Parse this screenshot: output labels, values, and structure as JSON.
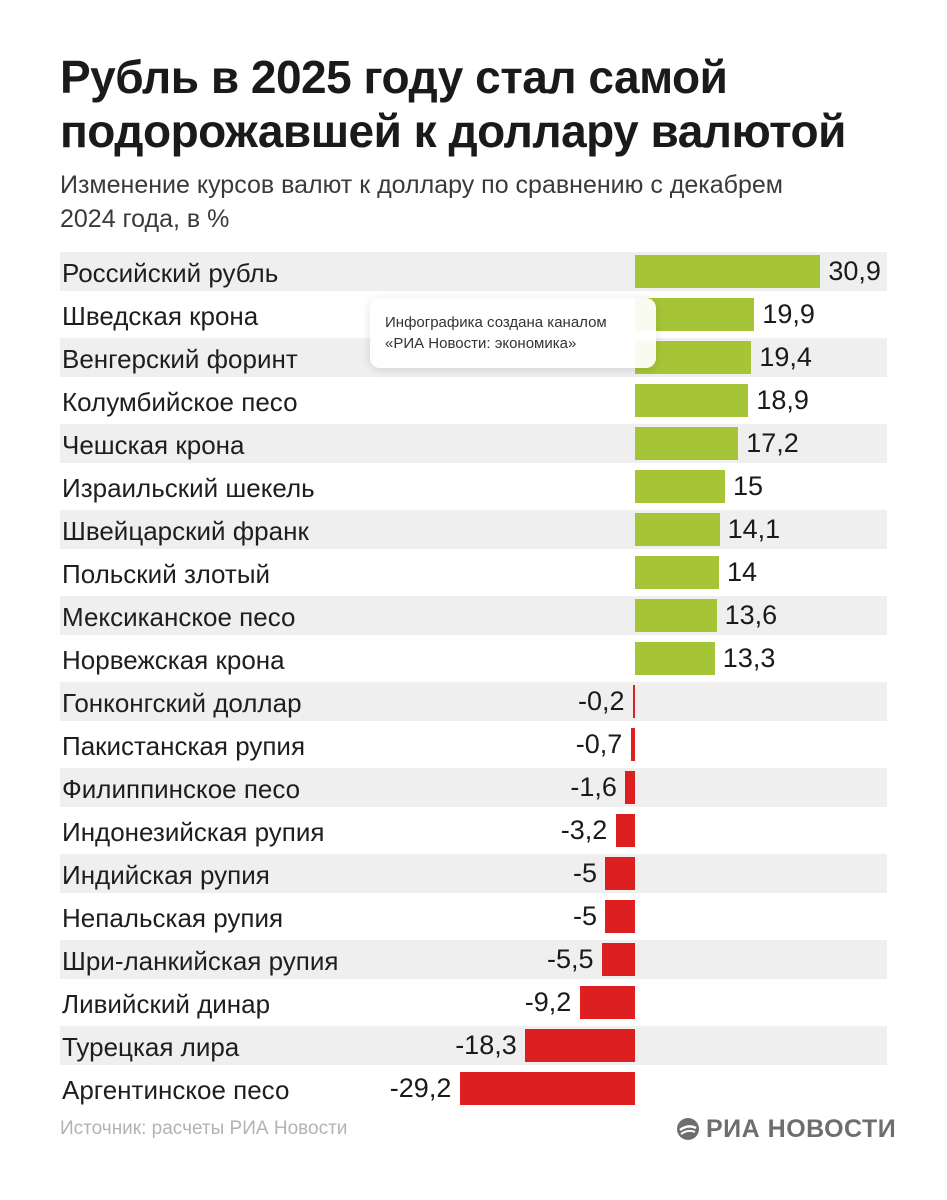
{
  "header": {
    "title": "Рубль в 2025 году стал самой подорожавшей к доллару валютой",
    "subtitle": "Изменение курсов валют к доллару по сравнению с декабрем 2024 года, в %"
  },
  "tooltip": {
    "text": "Инфографика создана каналом «РИА Новости: экономика»"
  },
  "footer": {
    "source": "Источник: расчеты РИА Новости",
    "logo_text": "РИА НОВОСТИ",
    "logo_icon": "ria-logo-icon"
  },
  "colors": {
    "positive": "#a6c536",
    "negative": "#dd1f1f",
    "row_shade": "#efefef"
  },
  "chart_data": {
    "type": "bar",
    "orientation": "horizontal",
    "categories": [
      "Российский рубль",
      "Шведская крона",
      "Венгерский форинт",
      "Колумбийское песо",
      "Чешская крона",
      "Израильский шекель",
      "Швейцарский франк",
      "Польский злотый",
      "Мексиканское песо",
      "Норвежская крона",
      "Гонконгский доллар",
      "Пакистанская рупия",
      "Филиппинское песо",
      "Индонезийская рупия",
      "Индийская рупия",
      "Непальская рупия",
      "Шри-ланкийская рупия",
      "Ливийский динар",
      "Турецкая лира",
      "Аргентинское песо"
    ],
    "values": [
      30.9,
      19.9,
      19.4,
      18.9,
      17.2,
      15,
      14.1,
      14,
      13.6,
      13.3,
      -0.2,
      -0.7,
      -1.6,
      -3.2,
      -5,
      -5,
      -5.5,
      -9.2,
      -18.3,
      -29.2
    ],
    "value_labels": [
      "30,9",
      "19,9",
      "19,4",
      "18,9",
      "17,2",
      "15",
      "14,1",
      "14",
      "13,6",
      "13,3",
      "-0,2",
      "-0,7",
      "-1,6",
      "-3,2",
      "-5",
      "-5",
      "-5,5",
      "-9,2",
      "-18,3",
      "-29,2"
    ],
    "title": "Рубль в 2025 году стал самой подорожавшей к доллару валютой",
    "subtitle": "Изменение курсов валют к доллару по сравнению с декабрем 2024 года, в %",
    "xlabel": "",
    "ylabel": "",
    "grid": false,
    "legend": "none"
  }
}
